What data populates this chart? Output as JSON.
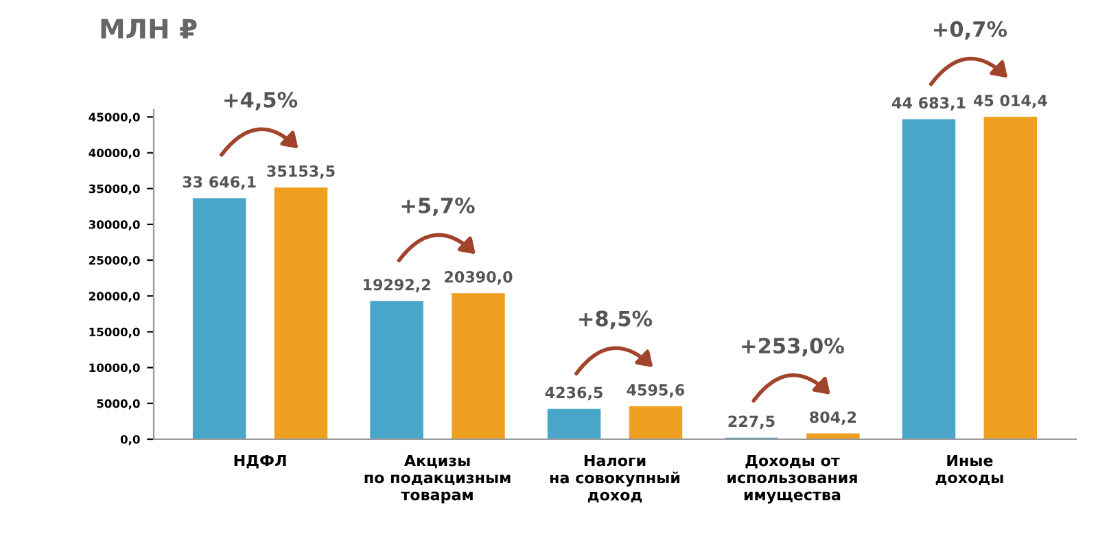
{
  "chart_data": {
    "type": "bar",
    "title": "МЛН ₽",
    "categories": [
      "НДФЛ",
      "Акцизы\nпо подакцизным\nтоварам",
      "Налоги\nна совокупный\nдоход",
      "Доходы от\nиспользования\nимущества",
      "Иные\nдоходы"
    ],
    "series": [
      {
        "color": "#4aa6c8",
        "values": [
          33646.1,
          19292.2,
          4236.5,
          227.5,
          44683.1
        ],
        "value_labels": [
          "33 646,1",
          "19292,2",
          "4236,5",
          "227,5",
          "44 683,1"
        ]
      },
      {
        "color": "#f0a020",
        "values": [
          35153.5,
          20390.0,
          4595.6,
          804.2,
          45014.4
        ],
        "value_labels": [
          "35153,5",
          "20390,0",
          "4595,6",
          "804,2",
          "45 014,4"
        ]
      }
    ],
    "annotations": [
      "+4,5%",
      "+5,7%",
      "+8,5%",
      "+253,0%",
      "+0,7%"
    ],
    "ylim": [
      0,
      46000
    ],
    "yticks": [
      {
        "value": 0,
        "label": "0,0"
      },
      {
        "value": 5000,
        "label": "5000,0"
      },
      {
        "value": 10000,
        "label": "10000,0"
      },
      {
        "value": 15000,
        "label": "15000,0"
      },
      {
        "value": 20000,
        "label": "20000,0"
      },
      {
        "value": 25000,
        "label": "25000,0"
      },
      {
        "value": 30000,
        "label": "30000,0"
      },
      {
        "value": 35000,
        "label": "35000,0"
      },
      {
        "value": 40000,
        "label": "40000,0"
      },
      {
        "value": 45000,
        "label": "45000,0"
      }
    ],
    "grid": false,
    "legend": false
  }
}
